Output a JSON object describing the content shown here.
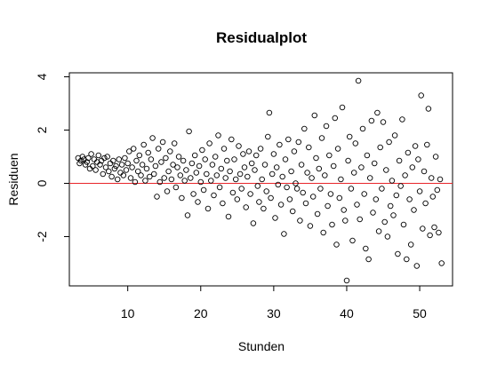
{
  "chart_data": {
    "type": "scatter",
    "title": "Residualplot",
    "xlabel": "Stunden",
    "ylabel": "Residuen",
    "xlim": [
      2.0,
      54.5
    ],
    "ylim": [
      -3.85,
      4.15
    ],
    "x_ticks": [
      10,
      20,
      30,
      40,
      50
    ],
    "y_ticks": [
      -2,
      0,
      2,
      4
    ],
    "x_tick_labels": [
      "10",
      "20",
      "30",
      "40",
      "50"
    ],
    "y_tick_labels": [
      "-2",
      "0",
      "2",
      "4"
    ],
    "grid": false,
    "legend": "none",
    "reference_line": {
      "y": 0,
      "color": "#e8252a"
    },
    "marker": {
      "shape": "open-circle",
      "color": "#000000"
    },
    "points": [
      [
        3.2,
        0.95
      ],
      [
        3.4,
        0.75
      ],
      [
        3.6,
        0.85
      ],
      [
        3.8,
        1.0
      ],
      [
        4.0,
        0.9
      ],
      [
        4.2,
        0.7
      ],
      [
        4.4,
        0.8
      ],
      [
        4.6,
        0.95
      ],
      [
        4.8,
        0.55
      ],
      [
        5.0,
        1.1
      ],
      [
        5.2,
        0.65
      ],
      [
        5.4,
        0.9
      ],
      [
        5.6,
        0.5
      ],
      [
        5.8,
        0.8
      ],
      [
        6.0,
        1.05
      ],
      [
        6.2,
        0.7
      ],
      [
        6.4,
        0.85
      ],
      [
        6.6,
        0.35
      ],
      [
        6.8,
        0.95
      ],
      [
        7.0,
        0.6
      ],
      [
        7.2,
        1.0
      ],
      [
        7.4,
        0.45
      ],
      [
        7.6,
        0.75
      ],
      [
        7.8,
        0.25
      ],
      [
        8.0,
        0.85
      ],
      [
        8.2,
        0.55
      ],
      [
        8.4,
        0.65
      ],
      [
        8.6,
        0.15
      ],
      [
        8.8,
        0.9
      ],
      [
        9.0,
        0.4
      ],
      [
        9.2,
        0.7
      ],
      [
        9.4,
        0.3
      ],
      [
        9.6,
        0.95
      ],
      [
        9.8,
        0.5
      ],
      [
        10.0,
        0.75
      ],
      [
        10.2,
        1.2
      ],
      [
        10.4,
        0.2
      ],
      [
        10.6,
        0.6
      ],
      [
        10.8,
        1.3
      ],
      [
        11.0,
        0.05
      ],
      [
        11.2,
        0.85
      ],
      [
        11.4,
        0.45
      ],
      [
        11.6,
        1.05
      ],
      [
        11.8,
        0.3
      ],
      [
        12.0,
        0.7
      ],
      [
        12.2,
        1.45
      ],
      [
        12.4,
        0.1
      ],
      [
        12.6,
        0.55
      ],
      [
        12.8,
        1.15
      ],
      [
        13.0,
        0.25
      ],
      [
        13.2,
        0.9
      ],
      [
        13.4,
        1.7
      ],
      [
        13.6,
        0.35
      ],
      [
        13.8,
        0.65
      ],
      [
        14.0,
        -0.5
      ],
      [
        14.2,
        1.3
      ],
      [
        14.4,
        0.05
      ],
      [
        14.6,
        0.8
      ],
      [
        14.8,
        1.55
      ],
      [
        15.0,
        0.2
      ],
      [
        15.2,
        0.95
      ],
      [
        15.4,
        -0.3
      ],
      [
        15.6,
        0.45
      ],
      [
        15.8,
        1.2
      ],
      [
        16.0,
        0.15
      ],
      [
        16.2,
        0.7
      ],
      [
        16.4,
        1.5
      ],
      [
        16.6,
        -0.15
      ],
      [
        16.8,
        0.6
      ],
      [
        17.0,
        1.0
      ],
      [
        17.2,
        0.3
      ],
      [
        17.4,
        -0.55
      ],
      [
        17.6,
        0.85
      ],
      [
        17.8,
        0.1
      ],
      [
        18.0,
        0.5
      ],
      [
        18.2,
        -1.2
      ],
      [
        18.4,
        1.95
      ],
      [
        18.6,
        0.2
      ],
      [
        18.8,
        0.75
      ],
      [
        19.0,
        -0.4
      ],
      [
        19.2,
        1.05
      ],
      [
        19.4,
        0.4
      ],
      [
        19.6,
        -0.7
      ],
      [
        19.8,
        0.65
      ],
      [
        20.0,
        0.05
      ],
      [
        20.2,
        1.25
      ],
      [
        20.4,
        -0.25
      ],
      [
        20.6,
        0.9
      ],
      [
        20.8,
        0.35
      ],
      [
        21.0,
        -0.95
      ],
      [
        21.2,
        1.5
      ],
      [
        21.4,
        0.1
      ],
      [
        21.6,
        0.7
      ],
      [
        21.8,
        -0.45
      ],
      [
        22.0,
        1.0
      ],
      [
        22.2,
        0.3
      ],
      [
        22.4,
        1.8
      ],
      [
        22.6,
        -0.15
      ],
      [
        22.8,
        0.55
      ],
      [
        23.0,
        -0.75
      ],
      [
        23.2,
        1.3
      ],
      [
        23.4,
        0.2
      ],
      [
        23.6,
        0.85
      ],
      [
        23.8,
        -1.25
      ],
      [
        24.0,
        0.45
      ],
      [
        24.2,
        1.65
      ],
      [
        24.4,
        -0.35
      ],
      [
        24.6,
        0.9
      ],
      [
        24.8,
        0.15
      ],
      [
        25.0,
        -0.6
      ],
      [
        25.2,
        1.4
      ],
      [
        25.4,
        0.35
      ],
      [
        25.6,
        -0.2
      ],
      [
        25.8,
        1.1
      ],
      [
        26.0,
        0.6
      ],
      [
        26.2,
        -0.9
      ],
      [
        26.4,
        0.25
      ],
      [
        26.6,
        1.2
      ],
      [
        26.8,
        -0.4
      ],
      [
        27.0,
        0.75
      ],
      [
        27.2,
        -1.5
      ],
      [
        27.4,
        0.5
      ],
      [
        27.6,
        1.05
      ],
      [
        27.8,
        -0.1
      ],
      [
        28.0,
        -0.7
      ],
      [
        28.2,
        1.3
      ],
      [
        28.4,
        0.15
      ],
      [
        28.6,
        -0.95
      ],
      [
        28.8,
        0.7
      ],
      [
        29.0,
        -0.3
      ],
      [
        29.2,
        1.75
      ],
      [
        29.4,
        2.65
      ],
      [
        29.6,
        -0.55
      ],
      [
        29.8,
        0.35
      ],
      [
        30.0,
        1.1
      ],
      [
        30.2,
        -1.3
      ],
      [
        30.4,
        0.6
      ],
      [
        30.6,
        -0.05
      ],
      [
        30.8,
        1.45
      ],
      [
        31.0,
        -0.8
      ],
      [
        31.2,
        0.25
      ],
      [
        31.4,
        -1.9
      ],
      [
        31.6,
        0.9
      ],
      [
        31.8,
        -0.15
      ],
      [
        32.0,
        1.65
      ],
      [
        32.2,
        -0.6
      ],
      [
        32.4,
        0.45
      ],
      [
        32.6,
        -1.05
      ],
      [
        32.8,
        1.2
      ],
      [
        33.0,
        0.0
      ],
      [
        33.2,
        -0.2
      ],
      [
        33.4,
        1.55
      ],
      [
        33.6,
        -1.4
      ],
      [
        33.8,
        0.7
      ],
      [
        34.0,
        -0.35
      ],
      [
        34.2,
        2.05
      ],
      [
        34.4,
        -0.75
      ],
      [
        34.6,
        0.4
      ],
      [
        34.8,
        1.35
      ],
      [
        35.0,
        -1.6
      ],
      [
        35.2,
        0.2
      ],
      [
        35.4,
        -0.5
      ],
      [
        35.6,
        2.55
      ],
      [
        35.8,
        0.95
      ],
      [
        36.0,
        -1.15
      ],
      [
        36.2,
        0.55
      ],
      [
        36.4,
        -0.2
      ],
      [
        36.6,
        1.7
      ],
      [
        36.8,
        -1.85
      ],
      [
        37.0,
        0.3
      ],
      [
        37.2,
        2.15
      ],
      [
        37.4,
        -0.85
      ],
      [
        37.6,
        1.05
      ],
      [
        37.8,
        -0.4
      ],
      [
        38.0,
        -1.55
      ],
      [
        38.2,
        0.65
      ],
      [
        38.4,
        2.45
      ],
      [
        38.6,
        -2.3
      ],
      [
        38.8,
        1.3
      ],
      [
        39.0,
        -0.55
      ],
      [
        39.2,
        0.15
      ],
      [
        39.4,
        2.85
      ],
      [
        39.6,
        -1.0
      ],
      [
        39.8,
        -1.4
      ],
      [
        40.0,
        -3.65
      ],
      [
        40.2,
        0.85
      ],
      [
        40.4,
        1.75
      ],
      [
        40.6,
        -0.2
      ],
      [
        40.8,
        -2.15
      ],
      [
        41.0,
        0.4
      ],
      [
        41.2,
        1.5
      ],
      [
        41.4,
        -0.8
      ],
      [
        41.6,
        3.85
      ],
      [
        41.8,
        -1.35
      ],
      [
        42.0,
        0.6
      ],
      [
        42.2,
        2.05
      ],
      [
        42.4,
        -0.4
      ],
      [
        42.6,
        -2.45
      ],
      [
        42.8,
        1.05
      ],
      [
        43.0,
        -2.85
      ],
      [
        43.2,
        0.2
      ],
      [
        43.4,
        2.35
      ],
      [
        43.6,
        -1.1
      ],
      [
        43.8,
        0.75
      ],
      [
        44.0,
        -0.6
      ],
      [
        44.2,
        2.65
      ],
      [
        44.4,
        -1.8
      ],
      [
        44.6,
        1.35
      ],
      [
        44.8,
        -0.2
      ],
      [
        45.0,
        2.3
      ],
      [
        45.2,
        -1.45
      ],
      [
        45.4,
        0.5
      ],
      [
        45.6,
        -2.0
      ],
      [
        45.8,
        1.55
      ],
      [
        46.0,
        -0.85
      ],
      [
        46.2,
        0.1
      ],
      [
        46.4,
        -1.2
      ],
      [
        46.6,
        1.8
      ],
      [
        46.8,
        -0.45
      ],
      [
        47.0,
        -2.65
      ],
      [
        47.2,
        0.85
      ],
      [
        47.4,
        -0.1
      ],
      [
        47.6,
        2.4
      ],
      [
        47.8,
        -1.55
      ],
      [
        48.0,
        0.3
      ],
      [
        48.2,
        -2.85
      ],
      [
        48.4,
        1.15
      ],
      [
        48.6,
        -0.6
      ],
      [
        48.8,
        -2.3
      ],
      [
        49.0,
        0.6
      ],
      [
        49.2,
        -1.0
      ],
      [
        49.4,
        1.4
      ],
      [
        49.6,
        -3.1
      ],
      [
        49.8,
        0.9
      ],
      [
        50.0,
        -0.3
      ],
      [
        50.2,
        3.3
      ],
      [
        50.4,
        -1.7
      ],
      [
        50.6,
        0.45
      ],
      [
        50.8,
        -0.75
      ],
      [
        51.0,
        1.45
      ],
      [
        51.2,
        2.8
      ],
      [
        51.4,
        -1.95
      ],
      [
        51.6,
        0.2
      ],
      [
        51.8,
        -0.5
      ],
      [
        52.0,
        -1.65
      ],
      [
        52.2,
        1.0
      ],
      [
        52.4,
        -0.25
      ],
      [
        52.6,
        -1.85
      ],
      [
        52.8,
        0.15
      ],
      [
        53.0,
        -3.0
      ]
    ]
  }
}
